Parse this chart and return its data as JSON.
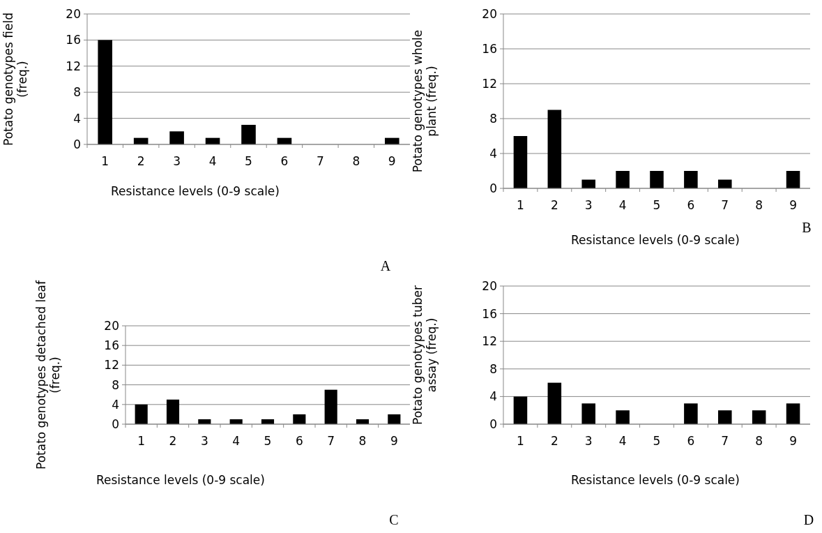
{
  "chart_data": [
    {
      "type": "bar",
      "categories": [
        "1",
        "2",
        "3",
        "4",
        "5",
        "6",
        "7",
        "8",
        "9"
      ],
      "values": [
        16,
        1,
        2,
        1,
        3,
        1,
        0,
        0,
        1
      ],
      "color": "#000000",
      "ylim": [
        0,
        20
      ],
      "yticks": [
        0,
        4,
        8,
        12,
        16,
        20
      ],
      "grid": "y",
      "xlabel": "Resistance levels (0-9 scale)",
      "ylabel": "Potato genotypes field (freq.)",
      "annotations": [
        "A"
      ]
    },
    {
      "type": "bar",
      "categories": [
        "1",
        "2",
        "3",
        "4",
        "5",
        "6",
        "7",
        "8",
        "9"
      ],
      "values": [
        6,
        9,
        1,
        2,
        2,
        2,
        1,
        0,
        2
      ],
      "color": "#000000",
      "ylim": [
        0,
        20
      ],
      "yticks": [
        0,
        4,
        8,
        12,
        16,
        20
      ],
      "grid": "y",
      "xlabel": "Resistance levels (0-9 scale)",
      "ylabel": "Potato genotypes whole plant (freq.)",
      "annotations": [
        "B"
      ]
    },
    {
      "type": "bar",
      "categories": [
        "1",
        "2",
        "3",
        "4",
        "5",
        "6",
        "7",
        "8",
        "9"
      ],
      "values": [
        4,
        5,
        1,
        1,
        1,
        2,
        7,
        1,
        2
      ],
      "color": "#000000",
      "ylim": [
        0,
        20
      ],
      "yticks": [
        0,
        4,
        8,
        12,
        16,
        20
      ],
      "grid": "y",
      "xlabel": "Resistance levels (0-9 scale)",
      "ylabel": "Potato genotypes detached leaf (freq.)",
      "annotations": [
        "C"
      ]
    },
    {
      "type": "bar",
      "categories": [
        "1",
        "2",
        "3",
        "4",
        "5",
        "6",
        "7",
        "8",
        "9"
      ],
      "values": [
        4,
        6,
        3,
        2,
        0,
        3,
        2,
        2,
        3
      ],
      "color": "#000000",
      "ylim": [
        0,
        20
      ],
      "yticks": [
        0,
        4,
        8,
        12,
        16,
        20
      ],
      "grid": "y",
      "xlabel": "Resistance levels (0-9 scale)",
      "ylabel": "Potato genotypes tuber assay (freq.)",
      "annotations": [
        "D"
      ]
    }
  ]
}
